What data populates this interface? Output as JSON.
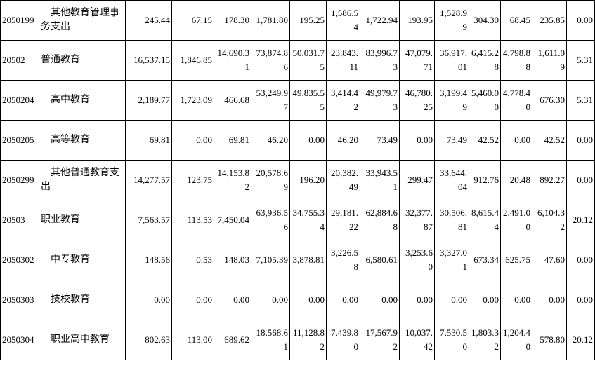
{
  "table": {
    "rows": [
      [
        "2050199",
        "其他教育管理事务支出",
        "245.44",
        "67.15",
        "178.30",
        "1,781.80",
        "195.25",
        "1,586.54",
        "1,722.94",
        "193.95",
        "1,528.99",
        "304.30",
        "68.45",
        "235.85",
        "0.00"
      ],
      [
        "20502",
        "普通教育",
        "16,537.15",
        "1,846.85",
        "14,690.31",
        "73,874.86",
        "50,031.75",
        "23,843.11",
        "83,996.73",
        "47,079.71",
        "36,917.01",
        "6,415.28",
        "4,798.88",
        "1,611.09",
        "5.31"
      ],
      [
        "2050204",
        "高中教育",
        "2,189.77",
        "1,723.09",
        "466.68",
        "53,249.97",
        "49,835.55",
        "3,414.42",
        "49,979.73",
        "46,780.25",
        "3,199.49",
        "5,460.00",
        "4,778.40",
        "676.30",
        "5.31"
      ],
      [
        "2050205",
        "高等教育",
        "69.81",
        "0.00",
        "69.81",
        "46.20",
        "0.00",
        "46.20",
        "73.49",
        "0.00",
        "73.49",
        "42.52",
        "0.00",
        "42.52",
        "0.00"
      ],
      [
        "2050299",
        "其他普通教育支出",
        "14,277.57",
        "123.75",
        "14,153.82",
        "20,578.69",
        "196.20",
        "20,382.49",
        "33,943.51",
        "299.47",
        "33,644.04",
        "912.76",
        "20.48",
        "892.27",
        "0.00"
      ],
      [
        "20503",
        "职业教育",
        "7,563.57",
        "113.53",
        "7,450.04",
        "63,936.56",
        "34,755.34",
        "29,181.22",
        "62,884.68",
        "32,377.87",
        "30,506.81",
        "8,615.44",
        "2,491.00",
        "6,104.32",
        "20.12"
      ],
      [
        "2050302",
        "中专教育",
        "148.56",
        "0.53",
        "148.03",
        "7,105.39",
        "3,878.81",
        "3,226.58",
        "6,580.61",
        "3,253.60",
        "3,327.01",
        "673.34",
        "625.75",
        "47.60",
        "0.00"
      ],
      [
        "2050303",
        "技校教育",
        "0.00",
        "0.00",
        "0.00",
        "0.00",
        "0.00",
        "0.00",
        "0.00",
        "0.00",
        "0.00",
        "0.00",
        "0.00",
        "0.00",
        "0.00"
      ],
      [
        "2050304",
        "职业高中教育",
        "802.63",
        "113.00",
        "689.62",
        "18,568.61",
        "11,128.82",
        "7,439.80",
        "17,567.92",
        "10,037.42",
        "7,530.50",
        "1,803.32",
        "1,204.40",
        "578.80",
        "20.12"
      ]
    ]
  }
}
